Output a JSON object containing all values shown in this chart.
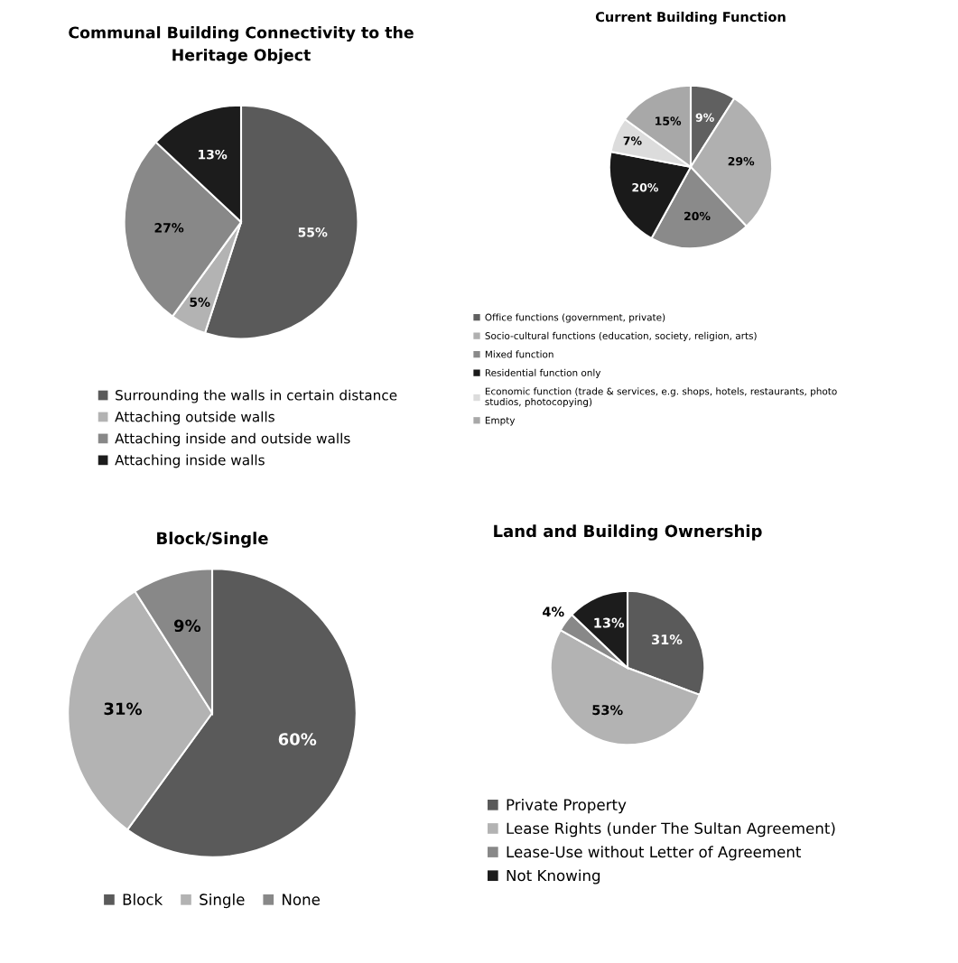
{
  "chart_data": [
    {
      "type": "pie",
      "title": "Communal Building Connectivity to the\nHeritage Object",
      "categories": [
        "Surrounding the walls in certain distance",
        "Attaching outside walls",
        "Attaching inside and outside walls",
        "Attaching inside walls"
      ],
      "values": [
        55,
        5,
        27,
        13
      ],
      "colors": [
        "#5a5a5a",
        "#b3b3b3",
        "#888888",
        "#1c1c1c"
      ],
      "value_labels": [
        "55%",
        "5%",
        "27%",
        "13%"
      ],
      "legend": "bottom"
    },
    {
      "type": "pie",
      "title": "Current Building Function",
      "categories": [
        "Office functions (government, private)",
        "Socio-cultural functions (education, society, religion, arts)",
        "Mixed function",
        "Residential function only",
        "Economic function (trade & services, e.g. shops, hotels, restaurants, photo\nstudios, photocopying)",
        "Empty"
      ],
      "values": [
        9,
        29,
        20,
        20,
        7,
        15
      ],
      "colors": [
        "#606060",
        "#b0b0b0",
        "#8a8a8a",
        "#1a1a1a",
        "#dcdcdc",
        "#a8a8a8"
      ],
      "value_labels": [
        "9%",
        "29%",
        "20%",
        "20%",
        "7%",
        "15%"
      ],
      "legend": "bottom"
    },
    {
      "type": "pie",
      "title": "Block/Single",
      "categories": [
        "Block",
        "Single",
        "None"
      ],
      "values": [
        60,
        31,
        9
      ],
      "colors": [
        "#5a5a5a",
        "#b3b3b3",
        "#888888"
      ],
      "value_labels": [
        "60%",
        "31%",
        "9%"
      ],
      "legend": "bottom"
    },
    {
      "type": "pie",
      "title": "Land and Building Ownership",
      "categories": [
        "Private Property",
        "Lease Rights (under The Sultan Agreement)",
        "Lease-Use without Letter of Agreement",
        "Not Knowing"
      ],
      "values": [
        31,
        53,
        4,
        13
      ],
      "colors": [
        "#5a5a5a",
        "#b3b3b3",
        "#888888",
        "#1c1c1c"
      ],
      "value_labels": [
        "31%",
        "53%",
        "4%",
        "13%"
      ],
      "legend": "bottom"
    }
  ]
}
